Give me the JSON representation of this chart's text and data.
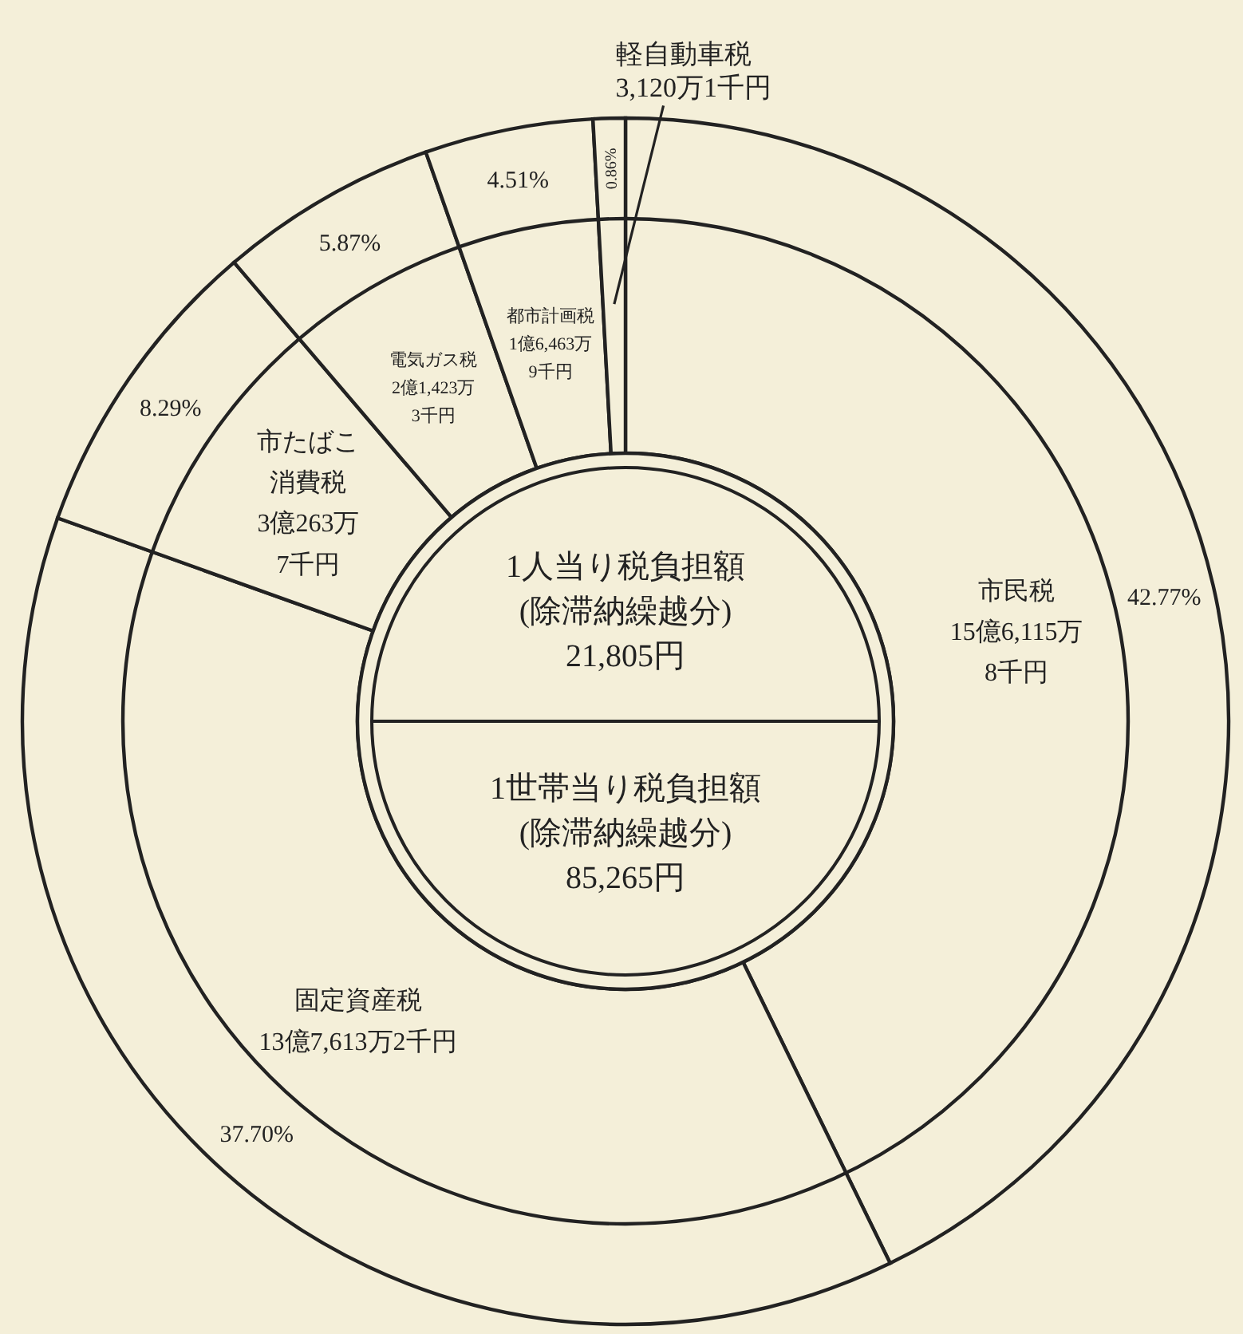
{
  "chart_data": {
    "type": "donut",
    "categories": [
      "市民税",
      "固定資産税",
      "市たばこ消費税",
      "電気ガス税",
      "都市計画税",
      "軽自動車税"
    ],
    "values": [
      42.77,
      37.7,
      8.29,
      5.87,
      4.51,
      0.86
    ],
    "value_labels": [
      "42.77%",
      "37.70%",
      "8.29%",
      "5.87%",
      "4.51%",
      "0.86%"
    ],
    "colors": [
      "#f4efd9",
      "#f4efd9",
      "#f4efd9",
      "#f4efd9",
      "#f4efd9",
      "#f4efd9"
    ],
    "annotations": [
      "15億6,115万\n8千円",
      "13億7,613万2千円",
      "3億263万\n7千円",
      "2億1,423万\n3千円",
      "1億6,463万\n9千円",
      "3,120万1千円",
      "1人当り税負担額\n(除滞納繰越分)\n21,805円",
      "1世帯当り税負担額\n(除滞納繰越分)\n85,265円"
    ]
  }
}
